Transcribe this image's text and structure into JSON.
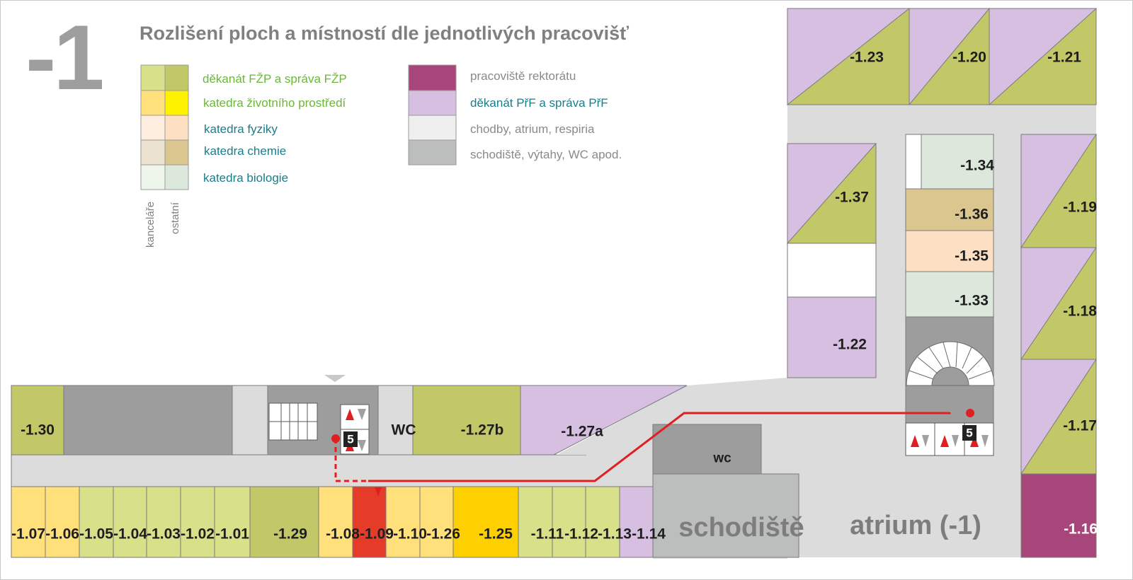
{
  "map": {
    "floor": "-1",
    "legend": {
      "title": "Rozlišení ploch a místností dle jednotlivých pracovišť",
      "column_labels": [
        "kanceláře",
        "ostatní"
      ],
      "left": [
        {
          "label": "děkanát FŽP a správa FŽP",
          "colors": [
            "#d8e08a",
            "#c2c868"
          ]
        },
        {
          "label": "katedra životního prostředí",
          "colors": [
            "#ffe07a",
            "#fff200"
          ]
        },
        {
          "label": "katedra fyziky",
          "colors": [
            "#fdeee0",
            "#fde0c4"
          ]
        },
        {
          "label": "katedra chemie",
          "colors": [
            "#ece2d0",
            "#dcc690"
          ]
        },
        {
          "label": "katedra biologie",
          "colors": [
            "#eef6ec",
            "#dce8dc"
          ]
        }
      ],
      "right": [
        {
          "label": "pracoviště rektorátu",
          "color": "#a8457a"
        },
        {
          "label": "děkanát PřF a správa PřF",
          "color": "#d6bfe0"
        },
        {
          "label": "chodby, atrium, respiria",
          "color": "#efefef"
        },
        {
          "label": "schodiště, výtahy, WC apod.",
          "color": "#bcbdbd"
        }
      ]
    },
    "rooms": {
      "r107": "-1.07",
      "r106": "-1.06",
      "r105": "-1.05",
      "r104": "-1.04",
      "r103": "-1.03",
      "r102": "-1.02",
      "r101": "-1.01",
      "r129": "-1.29",
      "r108": "-1.08",
      "r109": "-1.09",
      "r110": "-1.10",
      "r126": "-1.26",
      "r125": "-1.25",
      "r111": "-1.11",
      "r112": "-1.12",
      "r113": "-1.13",
      "r114": "-1.14",
      "r130": "-1.30",
      "r127b": "-1.27b",
      "r127a": "-1.27a",
      "r123": "-1.23",
      "r120": "-1.20",
      "r121": "-1.21",
      "r137": "-1.37",
      "r122": "-1.22",
      "r134": "-1.34",
      "r136": "-1.36",
      "r135": "-1.35",
      "r133": "-1.33",
      "r119": "-1.19",
      "r118": "-1.18",
      "r117": "-1.17",
      "r116": "-1.16"
    },
    "wc_label": "WC",
    "wc_label2": "wc",
    "stairs_label": "schodiště",
    "atrium_label": "atrium (-1)",
    "marker": "5",
    "route_color": "#e02020"
  }
}
